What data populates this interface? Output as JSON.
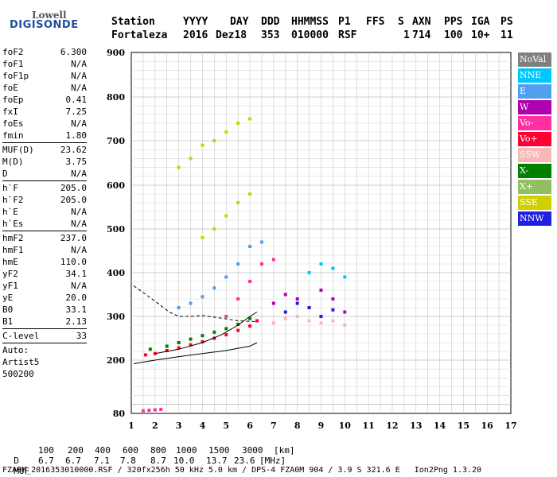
{
  "logo": {
    "line1": "Lowell",
    "line2": "DIGISONDE"
  },
  "header": {
    "labels": [
      "Station",
      "YYYY",
      "DAY",
      "DDD",
      "HHMMSS",
      "P1",
      "FFS",
      "S",
      "AXN",
      "PPS",
      "IGA",
      "PS"
    ],
    "values": [
      "Fortaleza",
      "2016",
      "Dez18",
      "353",
      "010000",
      "RSF",
      "",
      "1",
      "714",
      "100",
      "10+",
      "11"
    ]
  },
  "params": [
    {
      "name": "foF2",
      "value": "6.300"
    },
    {
      "name": "foF1",
      "value": "N/A"
    },
    {
      "name": "foF1p",
      "value": "N/A"
    },
    {
      "name": "foE",
      "value": "N/A"
    },
    {
      "name": "foEp",
      "value": "0.41"
    },
    {
      "name": "fxI",
      "value": "7.25"
    },
    {
      "name": "foEs",
      "value": "N/A"
    },
    {
      "name": "fmin",
      "value": "1.80",
      "sep": true
    },
    {
      "name": "MUF(D)",
      "value": "23.62"
    },
    {
      "name": "M(D)",
      "value": "3.75"
    },
    {
      "name": "D",
      "value": "N/A",
      "sep": true
    },
    {
      "name": "h`F",
      "value": "205.0"
    },
    {
      "name": "h`F2",
      "value": "205.0"
    },
    {
      "name": "h`E",
      "value": "N/A"
    },
    {
      "name": "h`Es",
      "value": "N/A",
      "sep": true
    },
    {
      "name": "hmF2",
      "value": "237.0"
    },
    {
      "name": "hmF1",
      "value": "N/A"
    },
    {
      "name": "hmE",
      "value": "110.0"
    },
    {
      "name": "yF2",
      "value": "34.1"
    },
    {
      "name": "yF1",
      "value": "N/A"
    },
    {
      "name": "yE",
      "value": "20.0"
    },
    {
      "name": "B0",
      "value": "33.1"
    },
    {
      "name": "B1",
      "value": "2.13",
      "sep": true
    },
    {
      "name": "C-level",
      "value": "33",
      "sep": true
    }
  ],
  "auto_info": {
    "line1": "Auto:",
    "line2": "Artist5",
    "line3": "500200"
  },
  "legend": [
    {
      "label": "NoVal",
      "color": "#808080"
    },
    {
      "label": "NNE",
      "color": "#00c8ff"
    },
    {
      "label": "E",
      "color": "#50a0f0"
    },
    {
      "label": "W",
      "color": "#b000b0"
    },
    {
      "label": "Vo-",
      "color": "#ff30a0"
    },
    {
      "label": "Vo+",
      "color": "#ff0030"
    },
    {
      "label": "SSW",
      "color": "#f8b8b8"
    },
    {
      "label": "X-",
      "color": "#008000"
    },
    {
      "label": "X+",
      "color": "#90c060"
    },
    {
      "label": "SSE",
      "color": "#d0d000"
    },
    {
      "label": "NNW",
      "color": "#2020e0"
    }
  ],
  "muf_table": {
    "d_label": "D",
    "d_values": [
      "100",
      "200",
      "400",
      "600",
      "800",
      "1000",
      "1500",
      "3000"
    ],
    "d_unit": "[km]",
    "muf_label": "MUF",
    "muf_values": [
      "6.7",
      "6.7",
      "7.1",
      "7.8",
      "8.7",
      "10.0",
      "13.7",
      "23.6"
    ],
    "muf_unit": "[MHz]"
  },
  "footer": "FZA0M_2016353010000.RSF / 320fx256h 50 kHz 5.0 km / DPS-4 FZA0M 904 / 3.9 S 321.6 E   Ion2Png 1.3.20",
  "chart_data": {
    "type": "scatter",
    "title": "",
    "xlabel": "",
    "ylabel": "",
    "xlim": [
      1,
      17
    ],
    "ylim": [
      80,
      900
    ],
    "x_ticks": [
      1,
      2,
      3,
      4,
      5,
      6,
      7,
      8,
      9,
      10,
      11,
      12,
      13,
      14,
      15,
      16,
      17
    ],
    "y_ticks": [
      80,
      200,
      300,
      400,
      500,
      600,
      700,
      800,
      900
    ],
    "y_scale": "piecewise",
    "grid": true,
    "legend_position": "right",
    "traces": [
      {
        "name": "",
        "x": [
          1.5,
          1.75,
          2.0,
          2.25
        ],
        "y": [
          86,
          87,
          88,
          89
        ],
        "direction": "Vo-"
      },
      {
        "name": "",
        "x": [
          1.6,
          2.0,
          2.5,
          3.0,
          3.5,
          4.0,
          4.5,
          5.0,
          5.5,
          6.0,
          6.3
        ],
        "y": [
          212,
          215,
          222,
          228,
          235,
          242,
          250,
          258,
          268,
          278,
          290
        ],
        "direction": "Vo+"
      },
      {
        "name": "",
        "x": [
          1.8,
          2.5,
          3.0,
          3.5,
          4.0,
          4.5,
          5.0,
          5.5,
          6.0
        ],
        "y": [
          225,
          232,
          240,
          248,
          256,
          264,
          272,
          282,
          295
        ],
        "direction": "X-"
      },
      {
        "name": "",
        "x": [
          3.0,
          3.5,
          4.0,
          4.5,
          5.0,
          5.5,
          6.0,
          6.5
        ],
        "y": [
          320,
          330,
          345,
          365,
          390,
          420,
          460,
          470
        ],
        "direction": "E"
      },
      {
        "name": "",
        "x": [
          3.0,
          3.5,
          4.0,
          4.5,
          5.0,
          5.5,
          6.0
        ],
        "y": [
          640,
          660,
          690,
          700,
          720,
          740,
          750
        ],
        "direction": "SSE"
      },
      {
        "name": "",
        "x": [
          4.0,
          4.5,
          5.0,
          5.5,
          6.0
        ],
        "y": [
          480,
          500,
          530,
          560,
          580
        ],
        "direction": "SSE"
      },
      {
        "name": "",
        "x": [
          5.0,
          5.5,
          6.0,
          6.5,
          7.0
        ],
        "y": [
          300,
          340,
          380,
          420,
          430
        ],
        "direction": "Vo-"
      },
      {
        "name": "",
        "x": [
          7.0,
          7.5,
          8.0,
          8.5,
          9.0,
          9.5,
          10.0
        ],
        "y": [
          330,
          350,
          340,
          320,
          360,
          340,
          310
        ],
        "direction": "W"
      },
      {
        "name": "",
        "x": [
          8.5,
          9.0,
          9.5,
          10.0
        ],
        "y": [
          400,
          420,
          410,
          390
        ],
        "direction": "NNE"
      },
      {
        "name": "",
        "x": [
          7.0,
          7.5,
          8.0,
          8.5,
          9.0,
          9.5,
          10.0
        ],
        "y": [
          285,
          295,
          300,
          290,
          285,
          290,
          280
        ],
        "direction": "SSW"
      },
      {
        "name": "",
        "x": [
          7.5,
          8.0,
          8.5,
          9.0,
          9.5
        ],
        "y": [
          310,
          330,
          320,
          300,
          315
        ],
        "direction": "NNW"
      }
    ],
    "curves": [
      {
        "style": "solid",
        "x": [
          1.1,
          2.0,
          3.0,
          4.0,
          5.0,
          6.0,
          6.3
        ],
        "y": [
          192,
          200,
          208,
          215,
          222,
          232,
          240
        ]
      },
      {
        "style": "solid",
        "x": [
          2.0,
          3.0,
          4.0,
          4.8,
          5.5,
          6.0,
          6.3
        ],
        "y": [
          215,
          225,
          240,
          258,
          280,
          300,
          310
        ]
      },
      {
        "style": "dashed",
        "x": [
          1.1,
          2.0,
          2.6,
          3.0,
          3.5,
          4.0,
          4.8,
          5.5,
          6.3
        ],
        "y": [
          370,
          335,
          310,
          300,
          300,
          302,
          296,
          290,
          288
        ]
      }
    ]
  }
}
